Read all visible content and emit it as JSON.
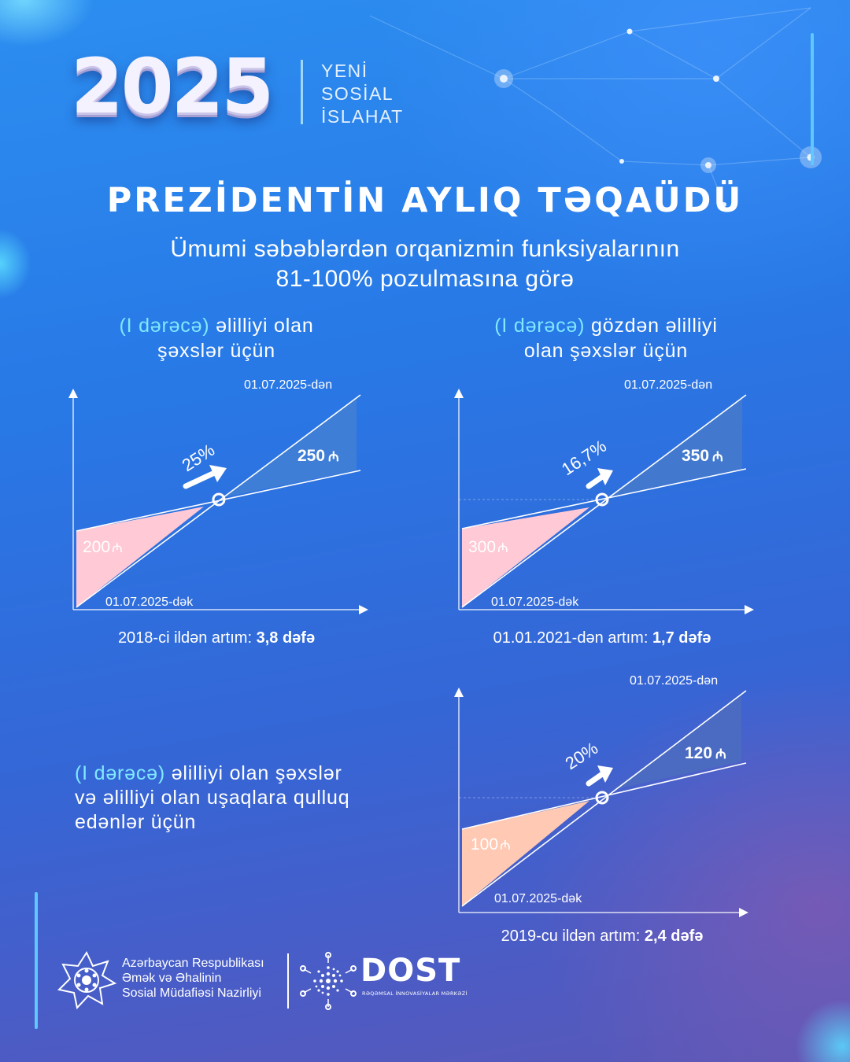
{
  "header": {
    "year": "2025",
    "slogan": [
      "YENİ",
      "SOSİAL",
      "İSLAHAT"
    ]
  },
  "title": "PREZİDENTİN AYLIQ TƏQAÜDÜ",
  "subtitle": [
    "Ümumi səbəblərdən orqanizmin funksiyalarının",
    "81-100% pozulmasına görə"
  ],
  "sections": [
    {
      "label_highlight": "(I dərəcə)",
      "label_rest_1": " əlilliyi olan",
      "label_line_2": "şəxslər üçün",
      "date_to": "01.07.2025-dən",
      "date_until": "01.07.2025-dək",
      "old_value": "200",
      "new_value": "250",
      "percent": "25%",
      "growth_prefix": "2018-ci ildən artım: ",
      "growth_value": "3,8 dəfə",
      "fill_low": "#ffc9d6",
      "fill_high": "#3f7ed6"
    },
    {
      "label_highlight": "(I dərəcə)",
      "label_rest_1": " gözdən əlilliyi",
      "label_line_2": "olan şəxslər üçün",
      "date_to": "01.07.2025-dən",
      "date_until": "01.07.2025-dək",
      "old_value": "300",
      "new_value": "350",
      "percent": "16,7%",
      "growth_prefix": "01.01.2021-dən artım: ",
      "growth_value": "1,7 dəfə",
      "fill_low": "#ffc9d6",
      "fill_high": "#4379cc"
    },
    {
      "label_highlight": "(I dərəcə)",
      "label_rest_1": " əlilliyi olan şəxslər",
      "label_line_2": "və əlilliyi olan uşaqlara qulluq",
      "label_line_3": "edənlər üçün",
      "date_to": "01.07.2025-dən",
      "date_until": "01.07.2025-dək",
      "old_value": "100",
      "new_value": "120",
      "percent": "20%",
      "growth_prefix": "2019-cu ildən artım: ",
      "growth_value": "2,4 dəfə",
      "fill_low": "#ffc9b3",
      "fill_high": "#4b6cc0"
    }
  ],
  "currency_symbol": "₼",
  "footer": {
    "ministry": [
      "Azərbaycan Respublikası",
      "Əmək və Əhalinin",
      "Sosial Müdafiəsi Nazirliyi"
    ],
    "dost_title": "DOST",
    "dost_subtitle": "RƏQƏMSAL İNNOVASİYALAR MƏRKƏZİ"
  }
}
